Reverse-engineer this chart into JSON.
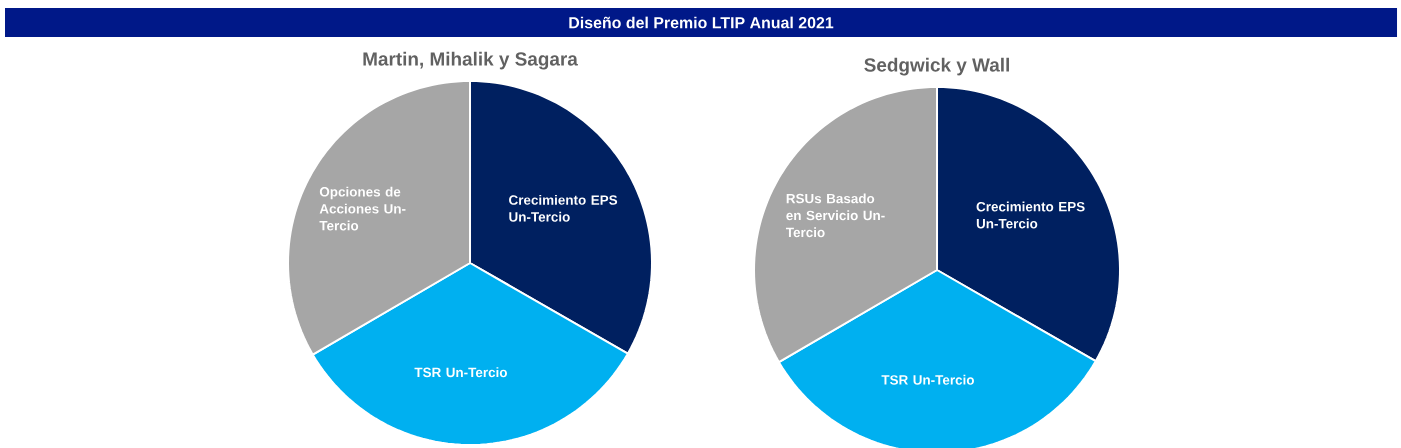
{
  "chart_data": [
    {
      "type": "pie",
      "title": "Martin, Mihalik y Sagara",
      "annotations": [
        "Diseño del Premio LTIP Anual 2021"
      ],
      "categories": [
        "Crecimiento EPS Un-Tercio",
        "TSR Un-Tercio",
        "Opciones de Acciones Un-Tercio"
      ],
      "values": [
        33.3,
        33.3,
        33.4
      ],
      "colors": [
        "#002060",
        "#00b0f0",
        "#a6a6a6"
      ]
    },
    {
      "type": "pie",
      "title": "Sedgwick y Wall",
      "categories": [
        "Crecimiento EPS Un-Tercio",
        "TSR Un-Tercio",
        "RSUs Basado en Servicio Un-Tercio"
      ],
      "values": [
        33.3,
        33.3,
        33.4
      ],
      "colors": [
        "#002060",
        "#00b0f0",
        "#a6a6a6"
      ]
    }
  ]
}
